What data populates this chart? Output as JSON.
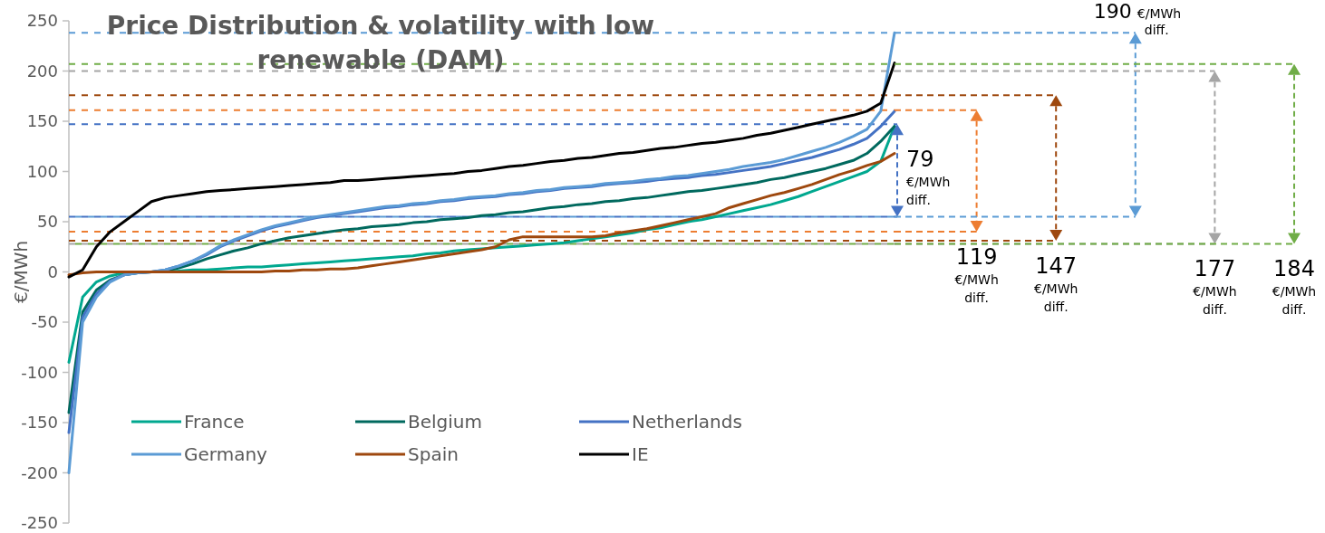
{
  "chart_data": {
    "type": "line",
    "title": "Price Distribution & volatility with low renewable (DAM)",
    "ylabel": "€/MWh",
    "categories": [
      null,
      null,
      null,
      null,
      null,
      null,
      null,
      null,
      null,
      null,
      null,
      null,
      null,
      null,
      null,
      null,
      null,
      null,
      null,
      null,
      null,
      null,
      null,
      null,
      null,
      null,
      null,
      null,
      null,
      null,
      null,
      null,
      null,
      null,
      null,
      null,
      null,
      null,
      null,
      null,
      null,
      null,
      null,
      null,
      null,
      null,
      null,
      null,
      null,
      null,
      null,
      null,
      null,
      null,
      null,
      null,
      null,
      null,
      null,
      null,
      null
    ],
    "series": [
      {
        "name": "France",
        "color": "#00a88f",
        "values": [
          -90,
          -25,
          -10,
          -4,
          -1,
          0,
          0,
          0,
          1,
          2,
          2,
          3,
          4,
          5,
          5,
          6,
          7,
          8,
          9,
          10,
          11,
          12,
          13,
          14,
          15,
          16,
          18,
          19,
          21,
          22,
          23,
          24,
          25,
          26,
          27,
          28,
          29,
          31,
          33,
          35,
          37,
          39,
          42,
          44,
          47,
          50,
          52,
          55,
          58,
          61,
          64,
          67,
          71,
          75,
          80,
          85,
          90,
          95,
          100,
          110,
          145
        ]
      },
      {
        "name": "Belgium",
        "color": "#00695e",
        "values": [
          -140,
          -40,
          -18,
          -8,
          -3,
          -1,
          0,
          1,
          4,
          8,
          13,
          17,
          21,
          24,
          28,
          31,
          34,
          36,
          38,
          40,
          42,
          43,
          45,
          46,
          47,
          49,
          50,
          52,
          53,
          54,
          56,
          57,
          59,
          60,
          62,
          64,
          65,
          67,
          68,
          70,
          71,
          73,
          74,
          76,
          78,
          80,
          81,
          83,
          85,
          87,
          89,
          92,
          94,
          97,
          100,
          103,
          107,
          111,
          118,
          130,
          145
        ]
      },
      {
        "name": "Netherlands",
        "color": "#4472c4",
        "values": [
          -160,
          -45,
          -22,
          -9,
          -3,
          -1,
          0,
          2,
          6,
          11,
          17,
          25,
          31,
          36,
          41,
          45,
          48,
          51,
          54,
          56,
          58,
          60,
          62,
          64,
          65,
          67,
          68,
          70,
          71,
          73,
          74,
          75,
          77,
          78,
          80,
          81,
          83,
          84,
          85,
          87,
          88,
          89,
          90,
          92,
          93,
          94,
          96,
          97,
          99,
          101,
          103,
          105,
          108,
          111,
          114,
          118,
          122,
          127,
          133,
          145,
          160
        ]
      },
      {
        "name": "Germany",
        "color": "#5b9bd5",
        "values": [
          -200,
          -50,
          -25,
          -10,
          -3,
          -1,
          0,
          2,
          6,
          11,
          18,
          26,
          32,
          37,
          42,
          46,
          49,
          52,
          55,
          57,
          59,
          61,
          63,
          65,
          66,
          68,
          69,
          71,
          72,
          74,
          75,
          76,
          78,
          79,
          81,
          82,
          84,
          85,
          86,
          88,
          89,
          90,
          92,
          93,
          95,
          96,
          98,
          100,
          102,
          105,
          107,
          109,
          112,
          116,
          120,
          124,
          129,
          135,
          142,
          160,
          238
        ]
      },
      {
        "name": "Spain",
        "color": "#9e480e",
        "values": [
          -3,
          -1,
          0,
          0,
          0,
          0,
          0,
          0,
          0,
          0,
          0,
          0,
          0,
          0,
          0,
          1,
          1,
          2,
          2,
          3,
          3,
          4,
          6,
          8,
          10,
          12,
          14,
          16,
          18,
          20,
          22,
          25,
          32,
          35,
          35,
          35,
          35,
          35,
          35,
          36,
          39,
          41,
          43,
          46,
          49,
          52,
          55,
          58,
          64,
          68,
          72,
          76,
          79,
          83,
          87,
          92,
          97,
          101,
          106,
          110,
          118
        ]
      },
      {
        "name": "IE",
        "color": "#000000",
        "values": [
          -5,
          2,
          25,
          40,
          50,
          60,
          70,
          74,
          76,
          78,
          80,
          81,
          82,
          83,
          84,
          85,
          86,
          87,
          88,
          89,
          91,
          91,
          92,
          93,
          94,
          95,
          96,
          97,
          98,
          100,
          101,
          103,
          105,
          106,
          108,
          110,
          111,
          113,
          114,
          116,
          118,
          119,
          121,
          123,
          124,
          126,
          128,
          129,
          131,
          133,
          136,
          138,
          141,
          144,
          147,
          150,
          153,
          156,
          160,
          168,
          208
        ]
      }
    ],
    "ylim": [
      -250,
      250
    ],
    "yticks": [
      -250,
      -200,
      -150,
      -100,
      -50,
      0,
      50,
      100,
      150,
      200,
      250
    ],
    "grid": false,
    "legend": "bottom left",
    "tick_labels": "y",
    "ref_lines": [
      {
        "axis": "y",
        "value": 147,
        "color": "#4472c4",
        "line_style": "dashed"
      },
      {
        "axis": "y",
        "value": 55,
        "color": "#4472c4",
        "line_style": "dashed",
        "label": "79 €/MWh diff."
      },
      {
        "axis": "y",
        "value": 161,
        "color": "#ed7d31",
        "line_style": "dashed"
      },
      {
        "axis": "y",
        "value": 40,
        "color": "#ed7d31",
        "line_style": "dashed",
        "label": "119 €/MWh diff."
      },
      {
        "axis": "y",
        "value": 176,
        "color": "#9e480e",
        "line_style": "dashed"
      },
      {
        "axis": "y",
        "value": 31,
        "color": "#9e480e",
        "line_style": "dashed",
        "label": "147 €/MWh diff."
      },
      {
        "axis": "y",
        "value": 238,
        "color": "#5b9bd5",
        "line_style": "dashed",
        "label": "190 €/MWh diff."
      },
      {
        "axis": "y",
        "value": 55,
        "color": "#5b9bd5",
        "line_style": "dashed"
      },
      {
        "axis": "y",
        "value": 200,
        "color": "#a5a5a5",
        "line_style": "dashed"
      },
      {
        "axis": "y",
        "value": 28,
        "color": "#a5a5a5",
        "line_style": "dashed",
        "label": "177 €/MWh diff."
      },
      {
        "axis": "y",
        "value": 207,
        "color": "#70ad47",
        "line_style": "dashed"
      },
      {
        "axis": "y",
        "value": 28,
        "color": "#70ad47",
        "line_style": "dashed",
        "label": "184 €/MWh diff."
      }
    ]
  }
}
